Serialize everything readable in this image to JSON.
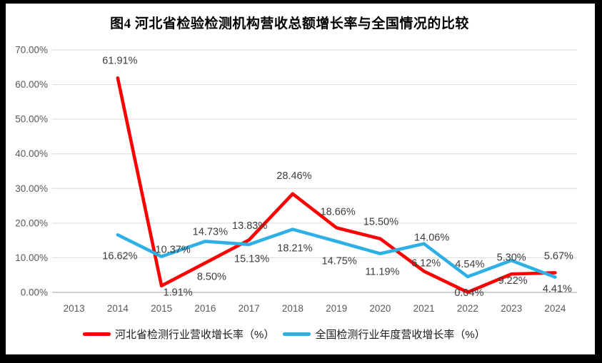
{
  "title": "图4 河北省检验检测机构营收总额增长率与全国情况的比较",
  "chart_data": {
    "type": "line",
    "title": "图4 河北省检验检测机构营收总额增长率与全国情况的比较",
    "categories": [
      "2013",
      "2014",
      "2015",
      "2016",
      "2017",
      "2018",
      "2019",
      "2020",
      "2021",
      "2022",
      "2023",
      "2024"
    ],
    "xlabel": "",
    "ylabel": "",
    "ylim": [
      0,
      70
    ],
    "y_tick_step": 10,
    "y_tick_labels": [
      "0.00%",
      "10.00%",
      "20.00%",
      "30.00%",
      "40.00%",
      "50.00%",
      "60.00%",
      "70.00%"
    ],
    "grid": true,
    "legend_position": "bottom",
    "series": [
      {
        "name": "河北省检测行业营收增长率（%）",
        "color": "#ff0000",
        "start_index": 1,
        "values": [
          61.91,
          1.91,
          8.5,
          15.13,
          28.46,
          18.66,
          15.5,
          6.12,
          0.04,
          5.3,
          5.67
        ],
        "labels": [
          "61.91%",
          "1.91%",
          "8.50%",
          "15.13%",
          "28.46%",
          "18.66%",
          "15.50%",
          "6.12%",
          "0.04%",
          "5.30%",
          "5.67%"
        ],
        "label_offsets": [
          [
            3,
            -20
          ],
          [
            23,
            14
          ],
          [
            9,
            24
          ],
          [
            4,
            31
          ],
          [
            2,
            -21
          ],
          [
            2,
            -18
          ],
          [
            1,
            -19
          ],
          [
            3,
            -7
          ],
          [
            2,
            5
          ],
          [
            0,
            -19
          ],
          [
            5,
            -19
          ]
        ]
      },
      {
        "name": "全国检测行业年度营收增长率（%）",
        "color": "#2fb0e4",
        "start_index": 1,
        "values": [
          16.62,
          10.37,
          14.73,
          13.83,
          18.21,
          14.75,
          11.19,
          14.06,
          4.54,
          9.22,
          4.41
        ],
        "labels": [
          "16.62%",
          "10.37%",
          "14.73%",
          "13.83%",
          "18.21%",
          "14.75%",
          "11.19%",
          "14.06%",
          "4.54%",
          "9.22%",
          "4.41%"
        ],
        "label_offsets": [
          [
            3,
            34
          ],
          [
            16,
            -5
          ],
          [
            7,
            -9
          ],
          [
            1,
            -22
          ],
          [
            3,
            31
          ],
          [
            4,
            32
          ],
          [
            3,
            30
          ],
          [
            11,
            -4
          ],
          [
            3,
            -13
          ],
          [
            2,
            33
          ],
          [
            3,
            21
          ]
        ]
      }
    ]
  },
  "colors": {
    "background": "#ffffff",
    "frame": "#000000",
    "gridline": "#d9d9d9",
    "axis_line": "#bfbfbf",
    "tick_text": "#595959",
    "data_label_text": "#3c3c3c",
    "hebei_line": "#ff0000",
    "national_line": "#2fb0e4"
  }
}
